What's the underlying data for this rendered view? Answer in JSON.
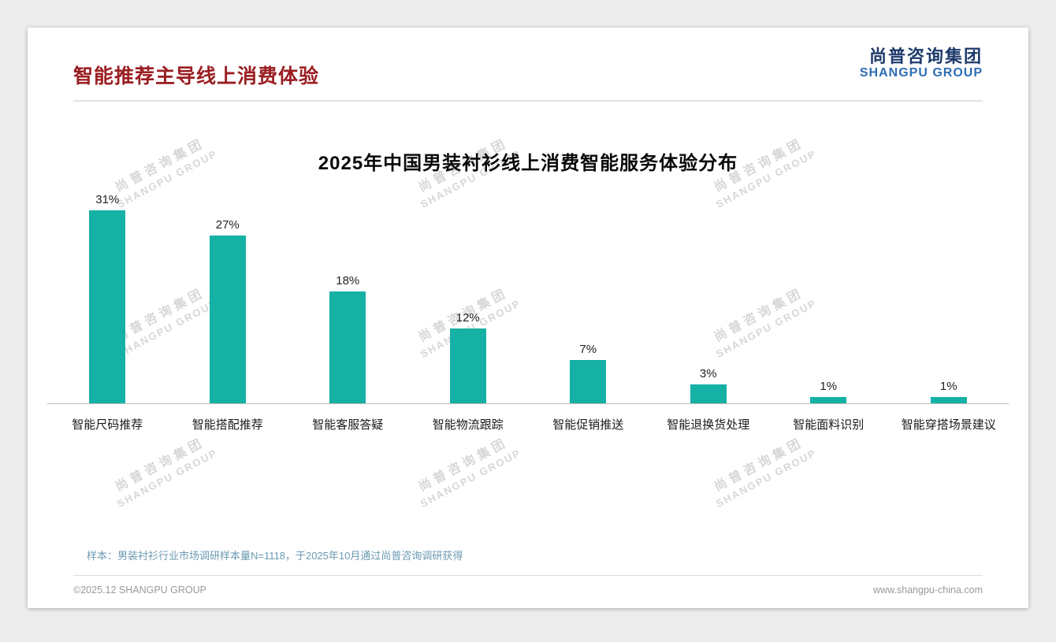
{
  "page": {
    "title": "智能推荐主导线上消费体验",
    "logo": {
      "line1": "尚普咨询集团",
      "line2": "SHANGPU GROUP"
    },
    "watermark": {
      "line1": "尚普咨询集团",
      "line2": "SHANGPU GROUP"
    },
    "note": "样本：男装衬衫行业市场调研样本量N=1118，于2025年10月通过尚普咨询调研获得",
    "footer_left": "©2025.12 SHANGPU GROUP",
    "footer_right": "www.shangpu-china.com"
  },
  "chart_data": {
    "type": "bar",
    "title": "2025年中国男装衬衫线上消费智能服务体验分布",
    "categories": [
      "智能尺码推荐",
      "智能搭配推荐",
      "智能客服答疑",
      "智能物流跟踪",
      "智能促销推送",
      "智能退换货处理",
      "智能面料识别",
      "智能穿搭场景建议"
    ],
    "values": [
      31,
      27,
      18,
      12,
      7,
      3,
      1,
      1
    ],
    "value_labels": [
      "31%",
      "27%",
      "18%",
      "12%",
      "7%",
      "3%",
      "1%",
      "1%"
    ],
    "unit": "%",
    "bar_color": "#16b1a5",
    "ylim": [
      0,
      35
    ],
    "grid": false,
    "legend": false,
    "xlabel": "",
    "ylabel": ""
  }
}
